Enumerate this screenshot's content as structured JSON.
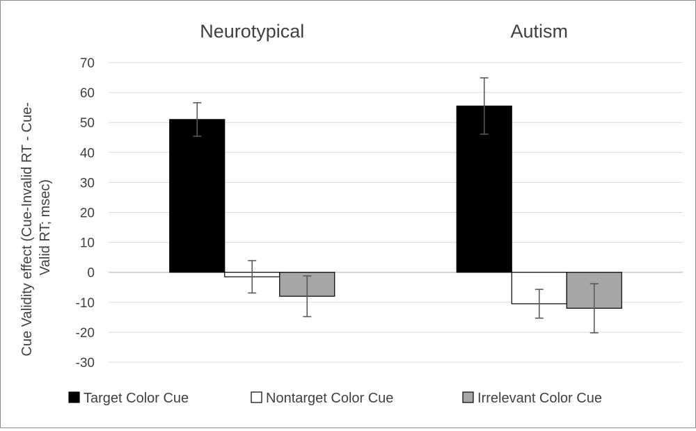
{
  "chart_data": {
    "type": "bar",
    "ylabel": "Cue Validity effect (Cue-Invalid RT - Cue-Valid RT; msec)",
    "ylabel_lines": [
      "Cue Validity effect (Cue-Invalid RT - Cue-",
      "Valid RT; msec)"
    ],
    "ylim": [
      -30,
      70
    ],
    "yticks": [
      70,
      60,
      50,
      40,
      30,
      20,
      10,
      0,
      -10,
      -20,
      -30
    ],
    "grid": true,
    "legend_position": "bottom",
    "categories": [
      "Neurotypical",
      "Autism"
    ],
    "series": [
      {
        "name": "Target Color Cue",
        "values": [
          51,
          55.5
        ],
        "error": [
          5.6,
          9.4
        ],
        "color": "#000000"
      },
      {
        "name": "Nontarget Color Cue",
        "values": [
          -1.5,
          -10.5
        ],
        "error": [
          5.4,
          4.8
        ],
        "color": "#ffffff"
      },
      {
        "name": "Irrelevant Color Cue",
        "values": [
          -8,
          -12
        ],
        "error": [
          6.8,
          8.2
        ],
        "color": "#a6a6a6"
      }
    ]
  }
}
